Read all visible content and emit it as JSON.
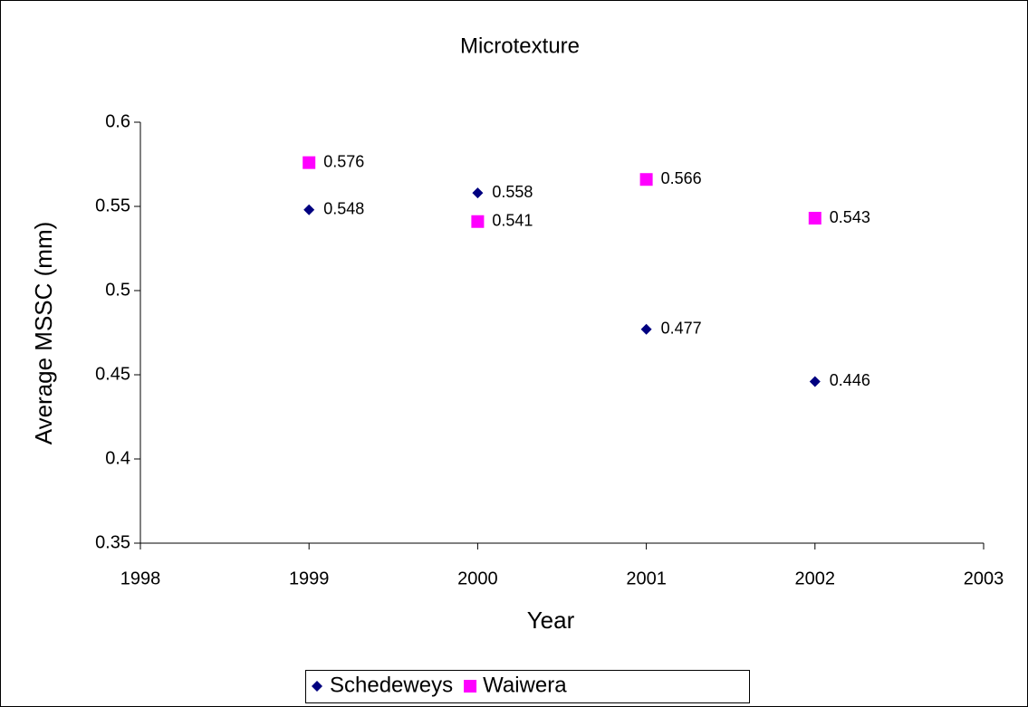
{
  "chart_data": {
    "type": "scatter",
    "title": "Microtexture",
    "x_label": "Year",
    "y_label": "Average MSSC (mm)",
    "x": [
      1999,
      2000,
      2001,
      2002
    ],
    "series": [
      {
        "name": "Schedeweys",
        "color": "#000080",
        "marker": "diamond",
        "values": [
          0.548,
          0.558,
          0.477,
          0.446
        ]
      },
      {
        "name": "Waiwera",
        "color": "#ff00ff",
        "marker": "square",
        "values": [
          0.576,
          0.541,
          0.566,
          0.543
        ]
      }
    ],
    "xlim": [
      1998,
      2003
    ],
    "xticks": [
      1998,
      1999,
      2000,
      2001,
      2002,
      2003
    ],
    "ylim": [
      0.35,
      0.6
    ],
    "yticks": [
      0.35,
      0.4,
      0.45,
      0.5,
      0.55,
      0.6
    ],
    "grid": false,
    "legend": "bottom"
  }
}
